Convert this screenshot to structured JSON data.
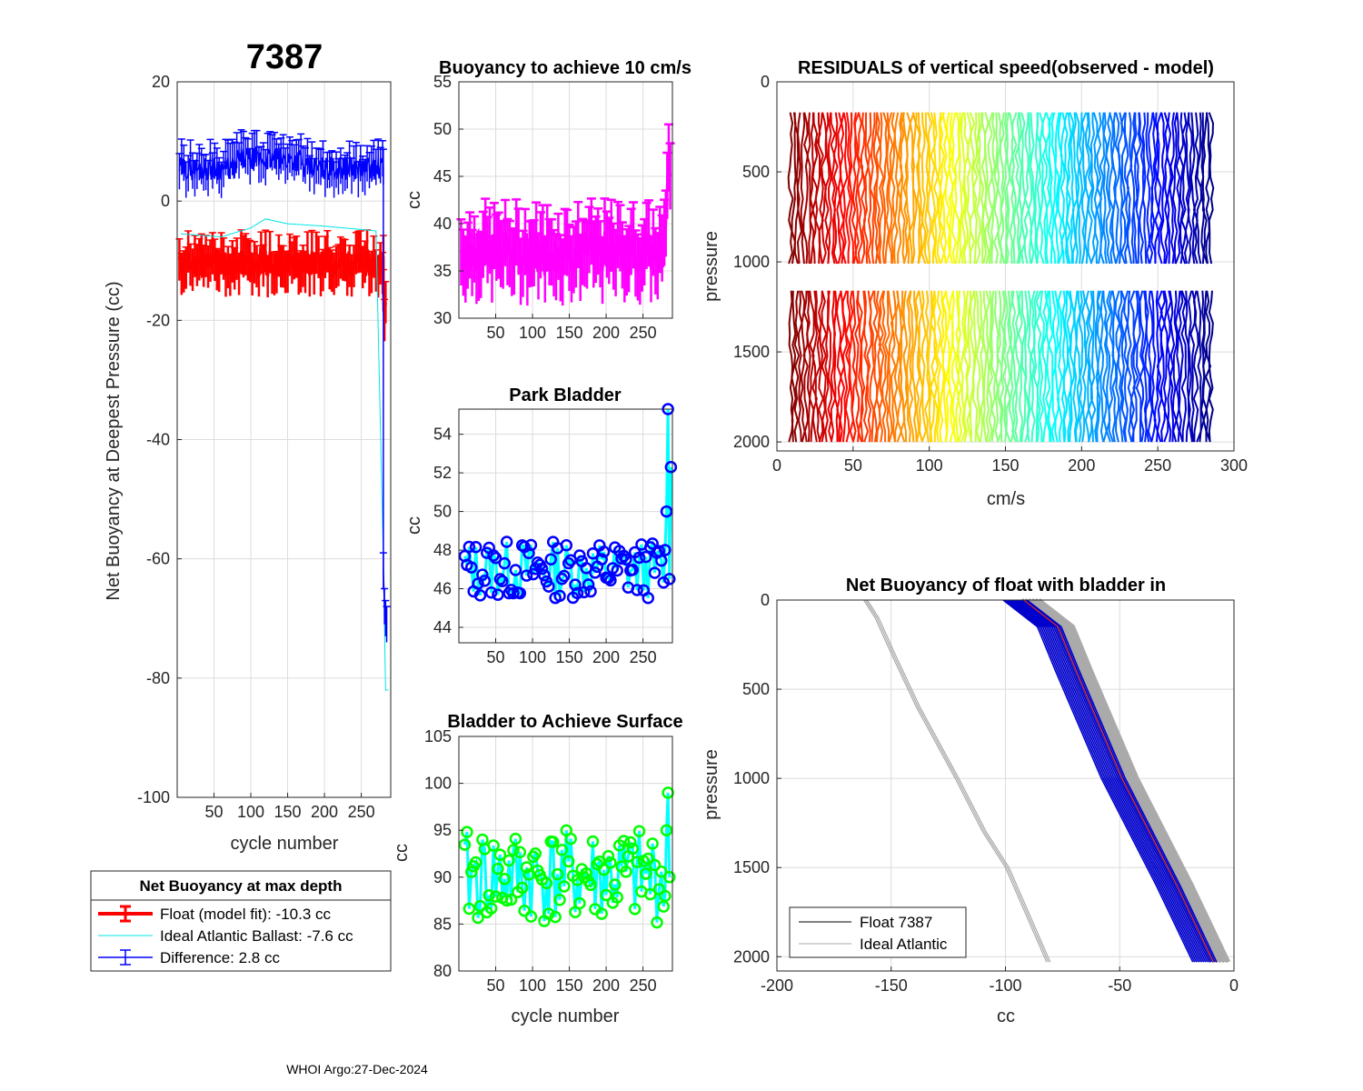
{
  "figure": {
    "float_id": "7387",
    "footer": "WHOI Argo:27-Dec-2024"
  },
  "legend": {
    "title": "Net Buoyancy at max depth",
    "items": [
      {
        "label": "Float (model fit): -10.3 cc",
        "color": "#ff0000"
      },
      {
        "label": "Ideal Atlantic Ballast:  -7.6 cc",
        "color": "#00e5e5"
      },
      {
        "label": "Difference:   2.8 cc",
        "color": "#0000ff"
      }
    ]
  },
  "legend2": {
    "items": [
      {
        "label": "Float 7387",
        "color": "#000000"
      },
      {
        "label": "Ideal Atlantic",
        "color": "#aaaaaa"
      }
    ]
  },
  "chart_data": [
    {
      "id": "net_buoyancy",
      "type": "line",
      "title": "7387",
      "xlabel": "cycle number",
      "ylabel": "Net Buoyancy at Deepest Pressure (cc)",
      "xlim": [
        0,
        290
      ],
      "ylim": [
        -100,
        20
      ],
      "xticks": [
        50,
        100,
        150,
        200,
        250
      ],
      "yticks": [
        20,
        0,
        -20,
        -40,
        -60,
        -80,
        -100
      ],
      "ytick_labels": [
        "20",
        "0",
        "-20",
        "-40",
        "-60",
        "-80",
        "-100"
      ],
      "series": [
        {
          "name": "Float (model fit)",
          "color": "#ff0000",
          "level": -10.5,
          "spread": 2.2,
          "err": 3.5,
          "end": [
            -15,
            -20,
            -17
          ]
        },
        {
          "name": "Ideal Atlantic Ballast",
          "color": "#00e5e5",
          "points": [
            [
              5,
              -5.5
            ],
            [
              60,
              -6
            ],
            [
              100,
              -4.5
            ],
            [
              120,
              -3
            ],
            [
              150,
              -3.8
            ],
            [
              200,
              -4.2
            ],
            [
              270,
              -5
            ],
            [
              280,
              -60
            ],
            [
              283,
              -82
            ],
            [
              287,
              -82
            ]
          ]
        },
        {
          "name": "Difference",
          "color": "#0000ff",
          "level": 5.5,
          "spread": 2.0,
          "err": 3.0,
          "end": [
            -62,
            -68,
            -70,
            -71
          ]
        }
      ]
    },
    {
      "id": "buoyancy_10cms",
      "type": "line",
      "title": "Buoyancy to achieve 10 cm/s",
      "xlabel": "",
      "ylabel": "cc",
      "xlim": [
        0,
        290
      ],
      "ylim": [
        30,
        55
      ],
      "xticks": [
        50,
        100,
        150,
        200,
        250
      ],
      "yticks": [
        30,
        35,
        40,
        45,
        50,
        55
      ],
      "series": [
        {
          "name": "buoyancy",
          "color": "#ff00ff",
          "level": 37,
          "spread": 2.2,
          "err": 3.5,
          "end": [
            40,
            44,
            47,
            45
          ]
        }
      ]
    },
    {
      "id": "park_bladder",
      "type": "line",
      "title": "Park Bladder",
      "xlabel": "",
      "ylabel": "cc",
      "xlim": [
        0,
        290
      ],
      "ylim": [
        43.2,
        55.3
      ],
      "xticks": [
        50,
        100,
        150,
        200,
        250
      ],
      "yticks": [
        44,
        46,
        48,
        50,
        52,
        54
      ],
      "series": [
        {
          "name": "park bladder",
          "color": "#00ffff",
          "marker_color": "#0000ff",
          "level": 47,
          "spread": 1.5,
          "end": [
            48,
            50,
            55.3,
            46.5,
            52.3
          ]
        }
      ]
    },
    {
      "id": "bladder_surface",
      "type": "line",
      "title": "Bladder to Achieve Surface",
      "xlabel": "cycle number",
      "ylabel": "cc",
      "xlim": [
        0,
        290
      ],
      "ylim": [
        80,
        105
      ],
      "xticks": [
        50,
        100,
        150,
        200,
        250
      ],
      "yticks": [
        80,
        85,
        90,
        95,
        100,
        105
      ],
      "series": [
        {
          "name": "surface bladder",
          "color": "#00ffff",
          "marker_color": "#00ff00",
          "level": 90,
          "spread": 5,
          "end": [
            88,
            95,
            99,
            90
          ]
        }
      ]
    },
    {
      "id": "residuals",
      "type": "line",
      "title": "RESIDUALS of vertical speed(observed - model)",
      "xlabel": "cm/s",
      "ylabel": "pressure",
      "xlim": [
        0,
        300
      ],
      "ylim": [
        2050,
        0
      ],
      "xticks": [
        0,
        50,
        100,
        150,
        200,
        250,
        300
      ],
      "yticks": [
        0,
        500,
        1000,
        1500,
        2000
      ],
      "profile_ranges": [
        [
          170,
          1020
        ],
        [
          1160,
          2000
        ]
      ],
      "n_profiles": 280
    },
    {
      "id": "net_buoyancy_profile",
      "type": "line",
      "title": "Net Buoyancy of float with bladder in",
      "xlabel": "cc",
      "ylabel": "pressure",
      "xlim": [
        -200,
        0
      ],
      "ylim": [
        2080,
        0
      ],
      "xticks": [
        -200,
        -150,
        -100,
        -50,
        0
      ],
      "yticks": [
        0,
        500,
        1000,
        1500,
        2000
      ],
      "ideal_atlantic": [
        [
          -162,
          0
        ],
        [
          -157,
          100
        ],
        [
          -150,
          300
        ],
        [
          -139,
          600
        ],
        [
          -122,
          1000
        ],
        [
          -110,
          1300
        ],
        [
          -100,
          1500
        ],
        [
          -82,
          2030
        ]
      ],
      "float_envelope": [
        [
          -95,
          0
        ],
        [
          -80,
          150
        ],
        [
          -72,
          400
        ],
        [
          -62,
          700
        ],
        [
          -52,
          1000
        ],
        [
          -40,
          1300
        ],
        [
          -28,
          1600
        ],
        [
          -12,
          2030
        ]
      ]
    }
  ]
}
